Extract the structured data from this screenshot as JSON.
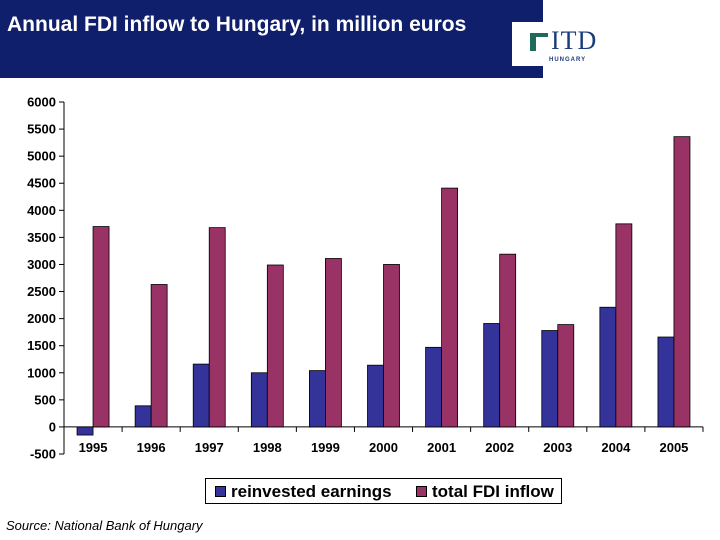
{
  "header": {
    "title": "Annual FDI inflow to Hungary, in million euros"
  },
  "logo": {
    "text": "ITD",
    "subtitle": "HUNGARY"
  },
  "source": "Source: National Bank of Hungary",
  "colors": {
    "header_bg": "#0f1f6b",
    "reinvested": "#33339a",
    "total": "#993366"
  },
  "chart_data": {
    "type": "bar",
    "title": "Annual FDI inflow to Hungary, in million euros",
    "xlabel": "",
    "ylabel": "",
    "ylim": [
      -500,
      6000
    ],
    "yticks": [
      6000,
      5500,
      5000,
      4500,
      4000,
      3500,
      3000,
      2500,
      2000,
      1500,
      1000,
      500,
      0,
      -500
    ],
    "categories": [
      "1995",
      "1996",
      "1997",
      "1998",
      "1999",
      "2000",
      "2001",
      "2002",
      "2003",
      "2004",
      "2005"
    ],
    "series": [
      {
        "name": "reinvested earnings",
        "values": [
          -150,
          390,
          1160,
          1000,
          1040,
          1140,
          1470,
          1910,
          1780,
          2210,
          1660
        ]
      },
      {
        "name": "total FDI inflow",
        "values": [
          3700,
          2630,
          3680,
          2990,
          3110,
          3000,
          4410,
          3190,
          1890,
          3750,
          5360
        ]
      }
    ],
    "legend": {
      "position": "bottom"
    }
  }
}
